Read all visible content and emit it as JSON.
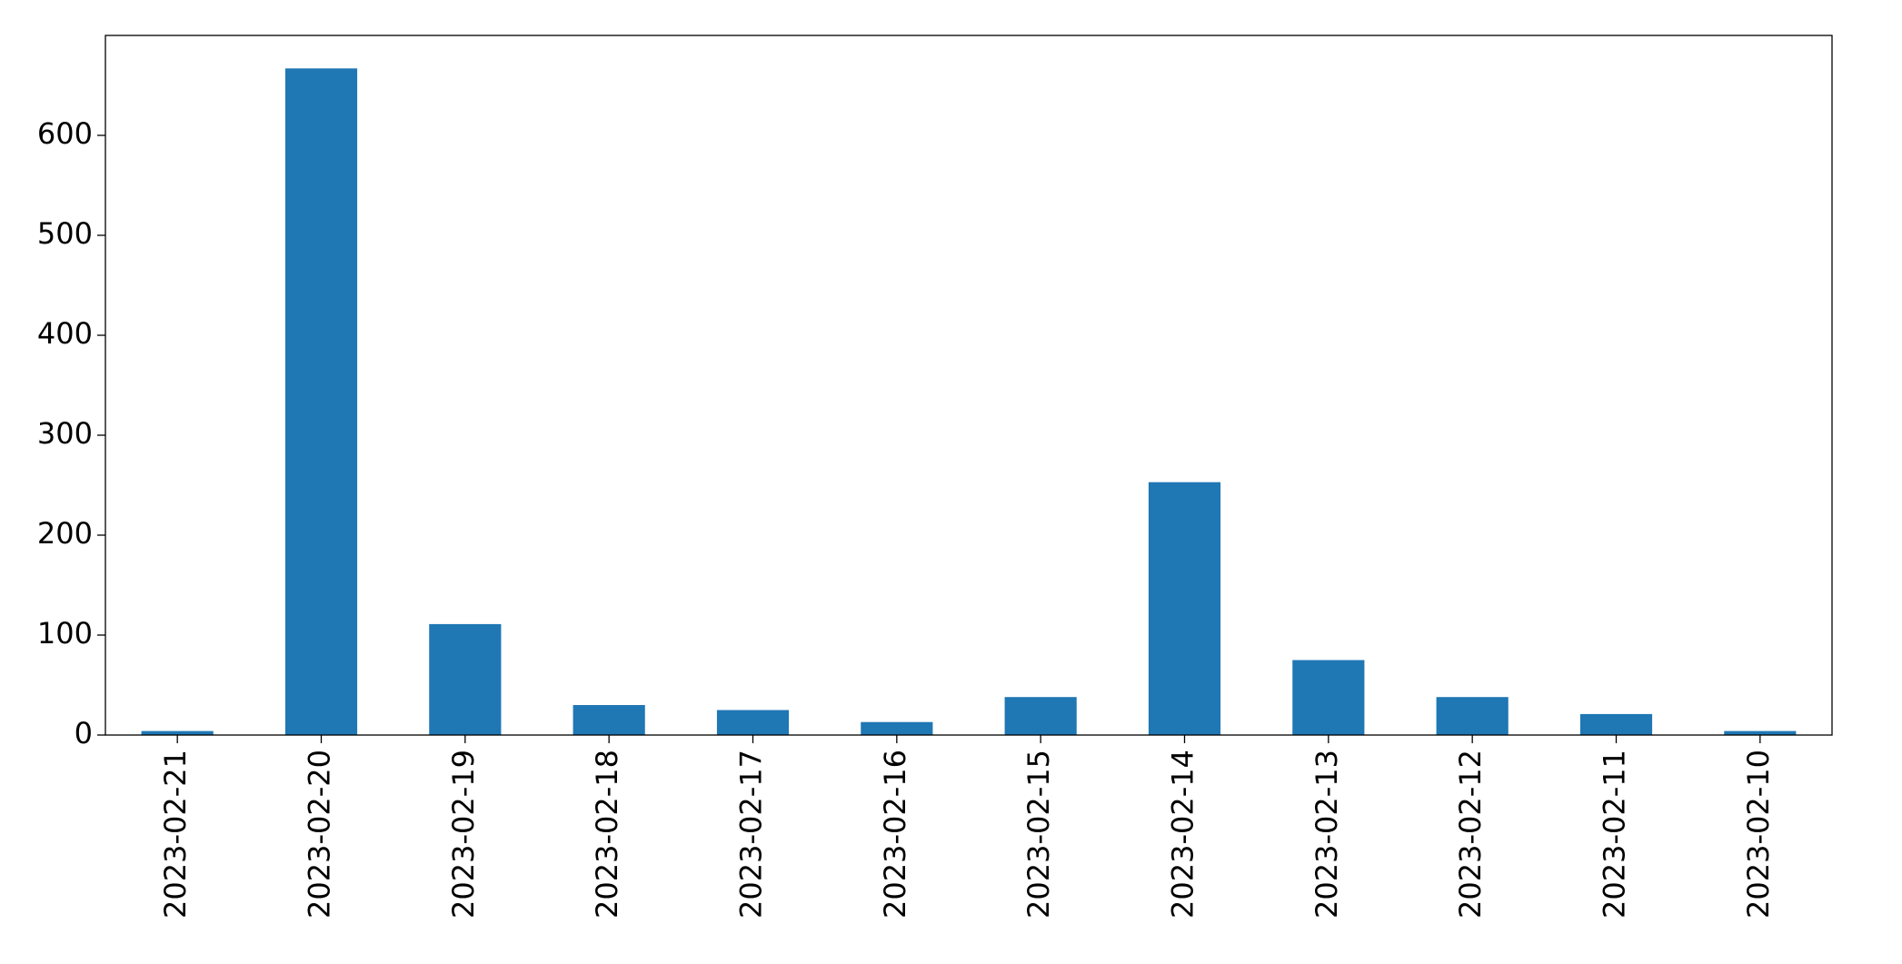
{
  "chart_data": {
    "type": "bar",
    "categories": [
      "2023-02-21",
      "2023-02-20",
      "2023-02-19",
      "2023-02-18",
      "2023-02-17",
      "2023-02-16",
      "2023-02-15",
      "2023-02-14",
      "2023-02-13",
      "2023-02-12",
      "2023-02-11",
      "2023-02-10"
    ],
    "values": [
      4,
      667,
      111,
      30,
      25,
      13,
      38,
      253,
      75,
      38,
      21,
      4
    ],
    "color": "#1f77b4",
    "ylim": [
      0,
      700
    ],
    "yticks": [
      0,
      100,
      200,
      300,
      400,
      500,
      600
    ],
    "grid": false
  }
}
